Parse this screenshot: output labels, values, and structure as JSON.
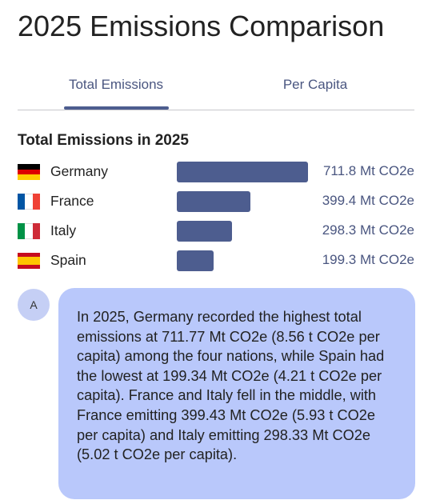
{
  "header": {
    "title": "2025 Emissions Comparison"
  },
  "tabs": [
    "Total Emissions",
    "Per Capita"
  ],
  "chart_data": {
    "type": "bar",
    "orientation": "horizontal",
    "title": "Total Emissions in 2025",
    "categories": [
      "Germany",
      "France",
      "Italy",
      "Spain"
    ],
    "values": [
      711.8,
      399.4,
      298.3,
      199.3
    ],
    "value_labels": [
      "711.8 Mt CO2e",
      "399.4 Mt CO2e",
      "298.3 Mt CO2e",
      "199.3 Mt CO2e"
    ],
    "color": "#4d5d8f"
  },
  "message": {
    "avatar": "A",
    "text": "In 2025, Germany recorded the highest total emissions at 711.77 Mt CO2e (8.56 t CO2e per capita) among the four nations, while Spain had the lowest at 199.34 Mt CO2e (4.21 t CO2e per capita). France and Italy fell in the middle, with France emitting 399.43 Mt CO2e (5.93 t CO2e per capita) and Italy emitting 298.33 Mt CO2e (5.02 t CO2e per capita)."
  }
}
